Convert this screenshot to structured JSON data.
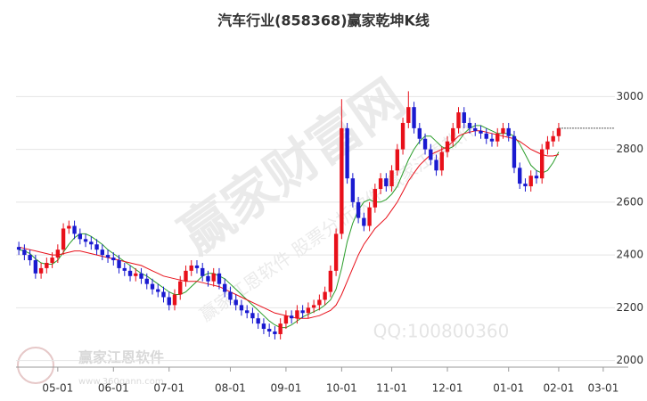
{
  "chart_data": {
    "type": "candlestick",
    "title": "汽车行业(858368)赢家乾坤K线",
    "categories": [
      null,
      null,
      null,
      null,
      null,
      null,
      null,
      "05-01",
      null,
      null,
      null,
      null,
      null,
      null,
      null,
      null,
      null,
      "06-01",
      null,
      null,
      null,
      null,
      null,
      null,
      null,
      null,
      null,
      "07-01",
      null,
      null,
      null,
      null,
      null,
      null,
      null,
      null,
      null,
      null,
      "08-01",
      null,
      null,
      null,
      null,
      null,
      null,
      null,
      null,
      null,
      "09-01",
      null,
      null,
      null,
      null,
      null,
      null,
      null,
      null,
      null,
      "10-01",
      null,
      null,
      null,
      null,
      null,
      null,
      null,
      null,
      "11-01",
      null,
      null,
      null,
      null,
      null,
      null,
      null,
      null,
      null,
      "12-01",
      null,
      null,
      null,
      null,
      null,
      null,
      null,
      null,
      null,
      null,
      "01-01",
      null,
      null,
      null,
      null,
      null,
      null,
      null,
      null,
      "02-01",
      null,
      null,
      null,
      null,
      null,
      null,
      null,
      "03-01",
      null,
      null,
      null,
      null
    ],
    "open": [
      2430,
      2420,
      2400,
      2380,
      2330,
      2350,
      2370,
      2390,
      2420,
      2500,
      2510,
      2480,
      2460,
      2450,
      2440,
      2420,
      2400,
      2390,
      2380,
      2350,
      2340,
      2320,
      2330,
      2310,
      2290,
      2270,
      2260,
      2240,
      2210,
      2250,
      2300,
      2340,
      2360,
      2350,
      2320,
      2300,
      2330,
      2290,
      2260,
      2230,
      2210,
      2190,
      2180,
      2160,
      2140,
      2120,
      2110,
      2100,
      2140,
      2170,
      2160,
      2190,
      2180,
      2200,
      2210,
      2230,
      2260,
      2340,
      2480,
      2880,
      2690,
      2600,
      2540,
      2510,
      2580,
      2650,
      2690,
      2660,
      2720,
      2800,
      2900,
      2960,
      2880,
      2840,
      2800,
      2760,
      2720,
      2790,
      2830,
      2880,
      2940,
      2900,
      2880,
      2870,
      2860,
      2840,
      2830,
      2860,
      2880,
      2850,
      2730,
      2670,
      2660,
      2700,
      2690,
      2800,
      2830,
      2850,
      null,
      null,
      null,
      null,
      null,
      null,
      null,
      null,
      null,
      null,
      null,
      null
    ],
    "high": [
      2450,
      2440,
      2420,
      2400,
      2370,
      2390,
      2410,
      2440,
      2520,
      2530,
      2530,
      2500,
      2480,
      2470,
      2460,
      2440,
      2420,
      2410,
      2400,
      2370,
      2360,
      2350,
      2350,
      2330,
      2310,
      2290,
      2280,
      2260,
      2270,
      2320,
      2360,
      2380,
      2380,
      2370,
      2340,
      2350,
      2350,
      2310,
      2280,
      2250,
      2230,
      2210,
      2200,
      2180,
      2160,
      2140,
      2130,
      2160,
      2190,
      2190,
      2210,
      2210,
      2220,
      2230,
      2250,
      2280,
      2360,
      2500,
      2990,
      2900,
      2710,
      2620,
      2560,
      2600,
      2670,
      2710,
      2710,
      2740,
      2820,
      2920,
      3020,
      2980,
      2900,
      2860,
      2820,
      2780,
      2810,
      2850,
      2900,
      2960,
      2960,
      2920,
      2900,
      2890,
      2880,
      2860,
      2880,
      2900,
      2900,
      2870,
      2750,
      2690,
      2720,
      2720,
      2820,
      2850,
      2870,
      2900,
      null,
      null,
      null,
      null,
      null,
      null,
      null,
      null,
      null,
      null,
      null,
      null
    ],
    "low": [
      2400,
      2380,
      2360,
      2310,
      2310,
      2330,
      2350,
      2370,
      2400,
      2480,
      2460,
      2440,
      2430,
      2420,
      2400,
      2380,
      2370,
      2360,
      2330,
      2320,
      2300,
      2300,
      2290,
      2270,
      2250,
      2240,
      2220,
      2190,
      2190,
      2230,
      2280,
      2320,
      2330,
      2300,
      2280,
      2280,
      2270,
      2240,
      2210,
      2190,
      2170,
      2160,
      2140,
      2120,
      2100,
      2090,
      2080,
      2080,
      2120,
      2140,
      2140,
      2160,
      2160,
      2180,
      2190,
      2210,
      2240,
      2320,
      2460,
      2670,
      2580,
      2520,
      2490,
      2490,
      2560,
      2630,
      2640,
      2640,
      2700,
      2780,
      2880,
      2860,
      2820,
      2780,
      2740,
      2700,
      2700,
      2770,
      2810,
      2860,
      2880,
      2860,
      2850,
      2840,
      2820,
      2810,
      2810,
      2840,
      2830,
      2710,
      2650,
      2640,
      2640,
      2670,
      2670,
      2780,
      2810,
      2830,
      null,
      null,
      null,
      null,
      null,
      null,
      null,
      null,
      null,
      null,
      null,
      null
    ],
    "close": [
      2420,
      2400,
      2380,
      2330,
      2350,
      2370,
      2390,
      2420,
      2500,
      2510,
      2480,
      2460,
      2450,
      2440,
      2420,
      2400,
      2390,
      2380,
      2350,
      2340,
      2320,
      2330,
      2310,
      2290,
      2270,
      2260,
      2240,
      2210,
      2250,
      2300,
      2340,
      2360,
      2350,
      2320,
      2300,
      2330,
      2290,
      2260,
      2230,
      2210,
      2190,
      2180,
      2160,
      2140,
      2120,
      2110,
      2100,
      2140,
      2170,
      2160,
      2190,
      2180,
      2200,
      2210,
      2230,
      2260,
      2340,
      2480,
      2880,
      2690,
      2600,
      2540,
      2510,
      2580,
      2650,
      2690,
      2660,
      2720,
      2800,
      2900,
      2960,
      2880,
      2840,
      2800,
      2760,
      2720,
      2790,
      2830,
      2880,
      2940,
      2900,
      2880,
      2870,
      2860,
      2840,
      2830,
      2860,
      2880,
      2850,
      2730,
      2670,
      2660,
      2700,
      2690,
      2800,
      2830,
      2850,
      2880,
      null,
      null,
      null,
      null,
      null,
      null,
      null,
      null,
      null,
      null,
      null,
      null
    ],
    "up_color": "#e8101a",
    "down_color": "#1a1ad0",
    "lines": [
      {
        "color": "#2a9d2a",
        "values": [
          2420,
          2415,
          2405,
          2385,
          2370,
          2365,
          2365,
          2380,
          2410,
          2440,
          2465,
          2480,
          2480,
          2470,
          2455,
          2440,
          2420,
          2405,
          2390,
          2375,
          2360,
          2345,
          2330,
          2320,
          2305,
          2290,
          2275,
          2260,
          2250,
          2250,
          2260,
          2280,
          2300,
          2320,
          2330,
          2330,
          2320,
          2310,
          2290,
          2270,
          2250,
          2230,
          2210,
          2190,
          2170,
          2150,
          2135,
          2125,
          2125,
          2135,
          2150,
          2165,
          2175,
          2185,
          2195,
          2210,
          2230,
          2270,
          2350,
          2450,
          2520,
          2570,
          2600,
          2610,
          2600,
          2600,
          2610,
          2630,
          2660,
          2710,
          2760,
          2800,
          2830,
          2850,
          2850,
          2830,
          2810,
          2800,
          2810,
          2830,
          2860,
          2880,
          2890,
          2890,
          2880,
          2870,
          2860,
          2860,
          2860,
          2850,
          2820,
          2780,
          2740,
          2720,
          2710,
          2720,
          2750,
          2790,
          null,
          null,
          null,
          null,
          null,
          null,
          null,
          null,
          null,
          null,
          null,
          null
        ]
      },
      {
        "color": "#e8101a",
        "values": [
          2430,
          2425,
          2420,
          2415,
          2410,
          2405,
          2400,
          2400,
          2405,
          2410,
          2415,
          2415,
          2410,
          2405,
          2400,
          2395,
          2390,
          2385,
          2380,
          2375,
          2370,
          2365,
          2360,
          2350,
          2340,
          2330,
          2320,
          2315,
          2310,
          2305,
          2300,
          2300,
          2300,
          2295,
          2290,
          2285,
          2280,
          2270,
          2260,
          2250,
          2240,
          2230,
          2220,
          2210,
          2200,
          2190,
          2180,
          2175,
          2170,
          2165,
          2160,
          2160,
          2160,
          2165,
          2170,
          2180,
          2190,
          2210,
          2250,
          2300,
          2350,
          2400,
          2440,
          2470,
          2500,
          2520,
          2540,
          2570,
          2600,
          2640,
          2680,
          2710,
          2740,
          2760,
          2780,
          2790,
          2800,
          2810,
          2830,
          2850,
          2860,
          2865,
          2870,
          2870,
          2865,
          2860,
          2855,
          2850,
          2845,
          2840,
          2830,
          2815,
          2800,
          2790,
          2780,
          2775,
          2775,
          2780,
          null,
          null,
          null,
          null,
          null,
          null,
          null,
          null,
          null,
          null,
          null,
          null
        ]
      }
    ],
    "hline": 2880,
    "ylim": [
      1975,
      3180
    ],
    "yticks": [
      2000,
      2200,
      2400,
      2600,
      2800,
      3000
    ],
    "grid": true,
    "watermarks": [
      "赢家财富网",
      "赢家江恩软件 股票分析软件 赢家江恩软件",
      "QQ:100800360",
      "赢家江恩软件",
      "www.360gann.com"
    ]
  }
}
